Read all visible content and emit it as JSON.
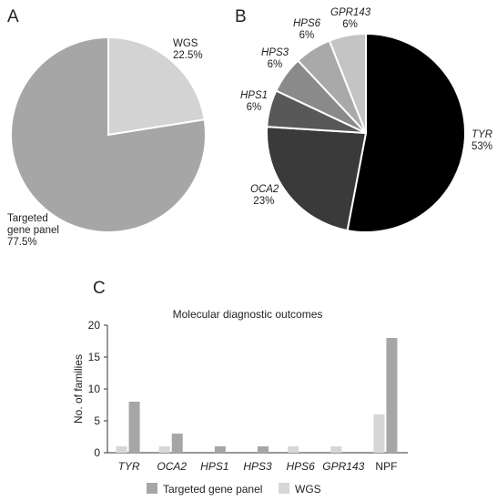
{
  "panels": {
    "a": "A",
    "b": "B",
    "c": "C"
  },
  "chart_data": [
    {
      "type": "pie",
      "panel": "A",
      "slices": [
        {
          "label": "WGS",
          "value_label": "22.5%",
          "value": 22.5,
          "color": "#d3d3d3"
        },
        {
          "label": "Targeted gene panel",
          "label_lines": [
            "Targeted",
            "gene panel"
          ],
          "value_label": "77.5%",
          "value": 77.5,
          "color": "#a6a6a6"
        }
      ]
    },
    {
      "type": "pie",
      "panel": "B",
      "slices": [
        {
          "label": "TYR",
          "value_label": "53%",
          "value": 53,
          "color": "#000000"
        },
        {
          "label": "OCA2",
          "value_label": "23%",
          "value": 23,
          "color": "#3a3a3a"
        },
        {
          "label": "HPS1",
          "value_label": "6%",
          "value": 6,
          "color": "#585858"
        },
        {
          "label": "HPS3",
          "value_label": "6%",
          "value": 6,
          "color": "#8a8a8a"
        },
        {
          "label": "HPS6",
          "value_label": "6%",
          "value": 6,
          "color": "#a9a9a9"
        },
        {
          "label": "GPR143",
          "value_label": "6%",
          "value": 6,
          "color": "#c4c4c4"
        }
      ]
    },
    {
      "type": "bar",
      "panel": "C",
      "title": "Molecular diagnostic outcomes",
      "ylabel": "No. of families",
      "ylim": [
        0,
        20
      ],
      "yticks": [
        0,
        5,
        10,
        15,
        20
      ],
      "categories": [
        "TYR",
        "OCA2",
        "HPS1",
        "HPS3",
        "HPS6",
        "GPR143",
        "NPF"
      ],
      "italic_categories": [
        "TYR",
        "OCA2",
        "HPS1",
        "HPS3",
        "HPS6",
        "GPR143"
      ],
      "series": [
        {
          "name": "WGS",
          "color": "#d6d6d6",
          "values": [
            1,
            1,
            0,
            0,
            1,
            1,
            6
          ]
        },
        {
          "name": "Targeted gene panel",
          "color": "#a6a6a6",
          "values": [
            8,
            3,
            1,
            1,
            0,
            0,
            18
          ]
        }
      ],
      "legend": {
        "placement": "bottom",
        "order": [
          "Targeted gene panel",
          "WGS"
        ]
      }
    }
  ]
}
